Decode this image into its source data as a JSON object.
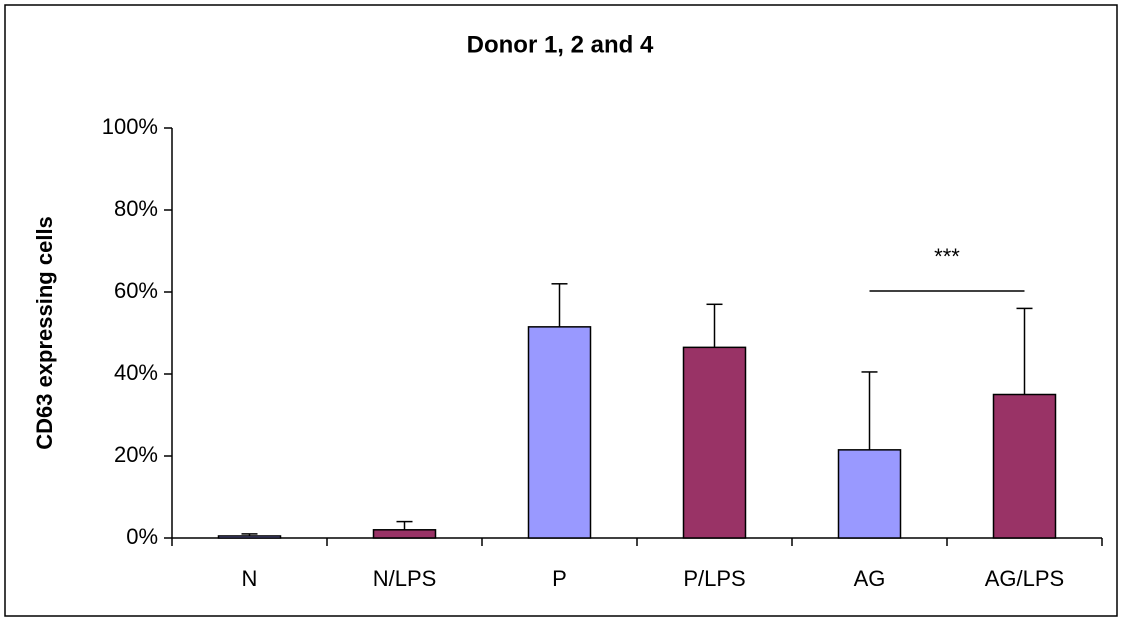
{
  "chart_data": {
    "type": "bar",
    "title": "Donor 1, 2 and 4",
    "y_label": "CD63 expressing cells",
    "categories": [
      "N",
      "N/LPS",
      "P",
      "P/LPS",
      "AG",
      "AG/LPS"
    ],
    "values": [
      0.5,
      2,
      51.5,
      46.5,
      21.5,
      35
    ],
    "errors": [
      0.5,
      2,
      10.5,
      10.5,
      19,
      21
    ],
    "colors": [
      "#9999ff",
      "#993366",
      "#9999ff",
      "#993366",
      "#9999ff",
      "#993366"
    ],
    "ylim": [
      0,
      100
    ],
    "yticks": [
      {
        "value": 0,
        "label": "0%"
      },
      {
        "value": 20,
        "label": "20%"
      },
      {
        "value": 40,
        "label": "40%"
      },
      {
        "value": 60,
        "label": "60%"
      },
      {
        "value": 80,
        "label": "80%"
      },
      {
        "value": 100,
        "label": "100%"
      }
    ],
    "annotation": "***"
  }
}
